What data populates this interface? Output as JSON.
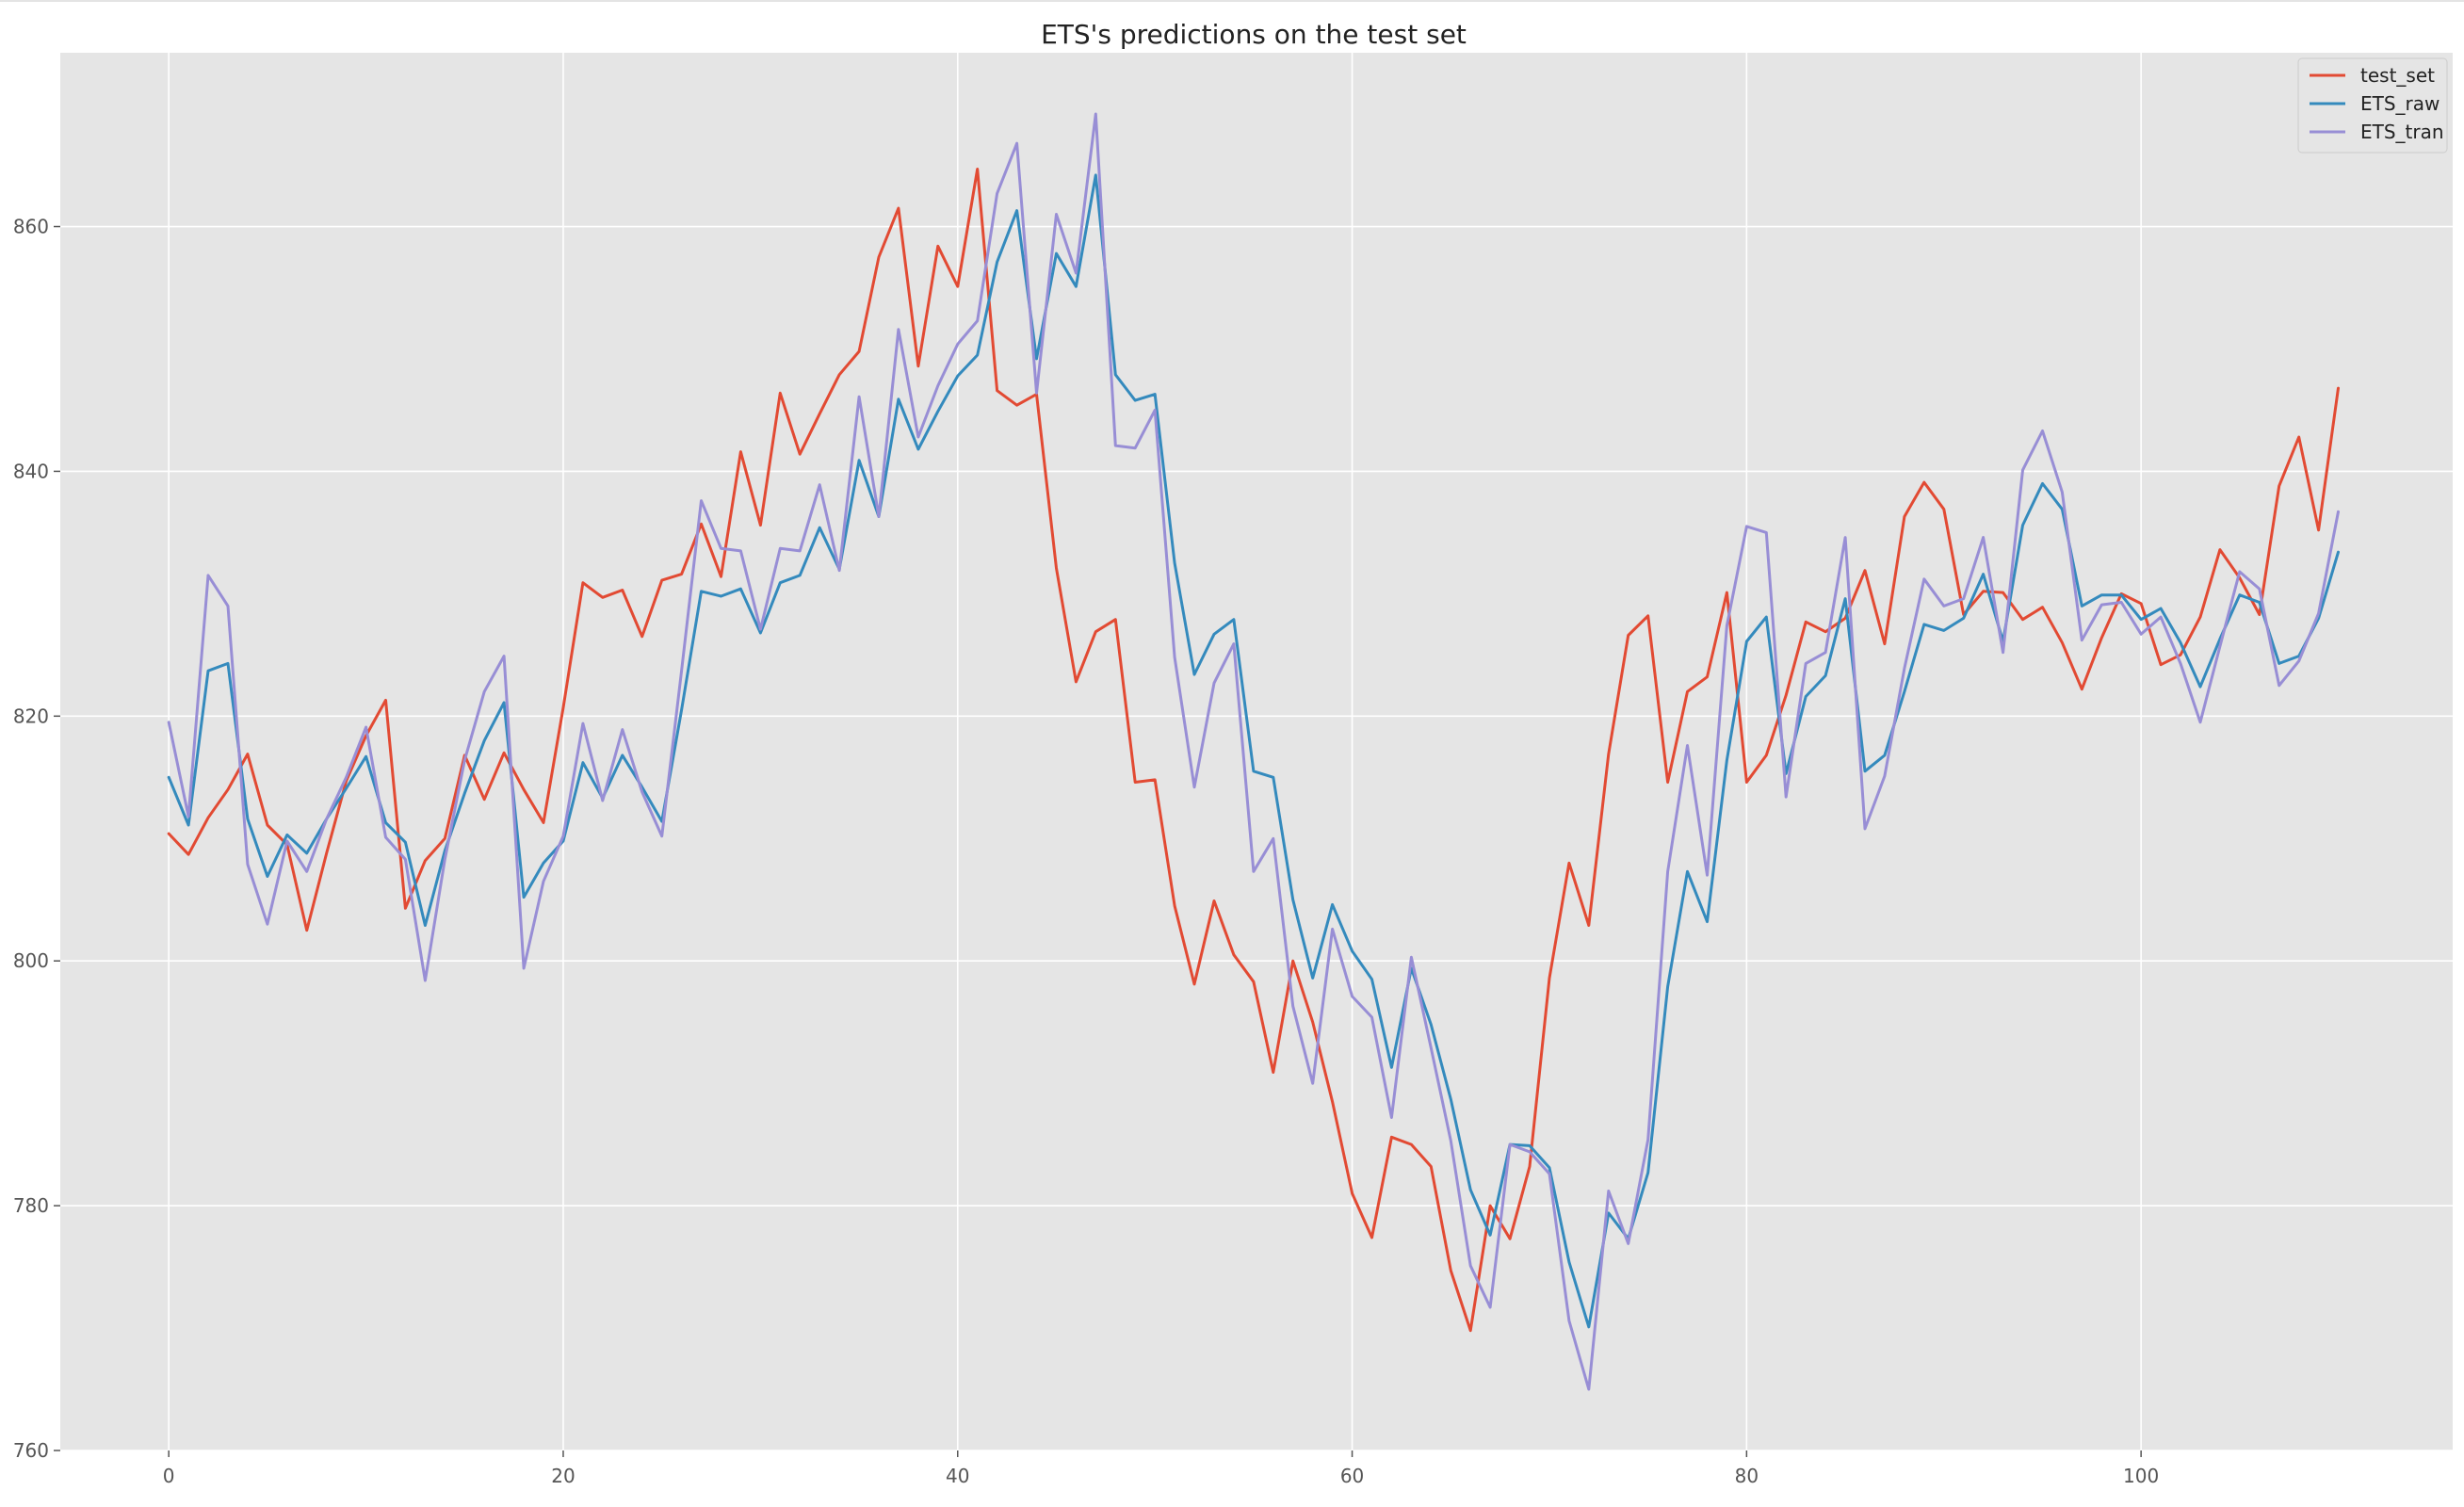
{
  "chart_data": {
    "type": "line",
    "title": "ETS's predictions on the test set",
    "xlabel": "",
    "ylabel": "",
    "xlim": [
      -5.5,
      115.8
    ],
    "ylim": [
      760,
      874.2
    ],
    "grid": true,
    "legend_position": "top-right",
    "x_ticks": [
      0,
      20,
      40,
      60,
      80,
      100
    ],
    "y_ticks": [
      760,
      780,
      800,
      820,
      840,
      860
    ],
    "background": "#e5e5e5",
    "series": [
      {
        "name": "test_set",
        "color": "#e24a33",
        "values": [
          810.4,
          808.7,
          811.7,
          814.0,
          816.9,
          811.1,
          809.5,
          802.5,
          808.8,
          814.7,
          818.4,
          821.3,
          804.3,
          808.2,
          810.0,
          816.8,
          813.2,
          817.0,
          814.0,
          811.3,
          820.7,
          830.9,
          829.7,
          830.3,
          826.5,
          831.1,
          831.6,
          835.7,
          831.4,
          841.6,
          835.6,
          846.4,
          841.4,
          844.7,
          847.9,
          849.8,
          857.5,
          861.5,
          848.6,
          858.4,
          855.1,
          864.7,
          846.6,
          845.4,
          846.3,
          832.1,
          822.8,
          826.9,
          827.9,
          814.6,
          814.8,
          804.5,
          798.1,
          804.9,
          800.5,
          798.3,
          790.9,
          800.0,
          795.0,
          788.5,
          781.0,
          777.4,
          785.6,
          785.0,
          783.2,
          774.7,
          769.8,
          780.0,
          777.3,
          783.2,
          798.6,
          808.0,
          802.9,
          816.9,
          826.6,
          828.2,
          814.6,
          822.0,
          823.2,
          830.1,
          814.6,
          816.8,
          821.7,
          827.7,
          826.9,
          828.0,
          831.9,
          825.9,
          836.3,
          839.1,
          836.9,
          828.3,
          830.2,
          830.1,
          827.9,
          828.9,
          826.0,
          822.2,
          826.4,
          830.0,
          829.2,
          824.2,
          825.0,
          828.1,
          833.6,
          831.3,
          828.3,
          838.8,
          842.8,
          835.2,
          846.8
        ]
      },
      {
        "name": "ETS_raw",
        "color": "#348abd",
        "values": [
          815.0,
          811.1,
          823.7,
          824.3,
          811.6,
          806.9,
          810.3,
          808.8,
          811.6,
          814.1,
          816.7,
          811.3,
          809.7,
          802.9,
          809.0,
          813.7,
          818.0,
          821.1,
          805.2,
          808.0,
          809.8,
          816.2,
          813.3,
          816.8,
          814.2,
          811.4,
          820.5,
          830.2,
          829.8,
          830.4,
          826.8,
          830.9,
          831.5,
          835.4,
          832.0,
          840.9,
          836.3,
          845.9,
          841.8,
          844.9,
          847.8,
          849.5,
          857.1,
          861.3,
          849.2,
          857.8,
          855.1,
          864.2,
          847.9,
          845.8,
          846.3,
          832.5,
          823.4,
          826.7,
          827.9,
          815.5,
          815.0,
          805.0,
          798.6,
          804.6,
          800.8,
          798.5,
          791.3,
          799.4,
          794.8,
          788.7,
          781.3,
          777.6,
          785.0,
          784.9,
          783.1,
          775.4,
          770.1,
          779.4,
          777.3,
          782.7,
          797.9,
          807.3,
          803.2,
          816.4,
          826.1,
          828.1,
          815.3,
          821.6,
          823.3,
          829.6,
          815.5,
          816.8,
          822.0,
          827.5,
          827.0,
          828.0,
          831.6,
          826.1,
          835.6,
          839.0,
          836.9,
          829.0,
          829.9,
          829.9,
          827.9,
          828.8,
          826.0,
          822.4,
          826.3,
          829.9,
          829.3,
          824.3,
          824.9,
          828.0,
          833.4
        ]
      },
      {
        "name": "ETS_tran",
        "color": "#988ed5",
        "values": [
          819.5,
          811.8,
          831.5,
          829.0,
          807.9,
          803.0,
          809.8,
          807.3,
          811.6,
          815.0,
          819.1,
          810.1,
          808.3,
          798.4,
          808.3,
          816.4,
          822.0,
          824.9,
          799.4,
          806.5,
          810.2,
          819.4,
          813.1,
          818.9,
          813.8,
          810.2,
          823.7,
          837.6,
          833.7,
          833.5,
          827.1,
          833.7,
          833.5,
          838.9,
          831.9,
          846.1,
          836.3,
          851.6,
          842.8,
          847.0,
          850.4,
          852.3,
          862.7,
          866.8,
          846.4,
          861.0,
          856.2,
          869.2,
          842.1,
          841.9,
          845.0,
          824.8,
          814.2,
          822.7,
          825.9,
          807.3,
          810.0,
          796.3,
          790.0,
          802.6,
          797.1,
          795.4,
          787.2,
          800.3,
          792.9,
          785.3,
          775.1,
          771.7,
          785.0,
          784.4,
          782.6,
          770.6,
          765.0,
          781.2,
          776.9,
          785.4,
          807.3,
          817.6,
          807.0,
          827.4,
          835.5,
          835.0,
          813.4,
          824.3,
          825.2,
          834.6,
          810.8,
          815.1,
          823.9,
          831.2,
          829.0,
          829.6,
          834.6,
          825.2,
          840.1,
          843.3,
          838.3,
          826.2,
          829.1,
          829.3,
          826.7,
          828.1,
          824.3,
          819.5,
          825.7,
          831.8,
          830.4,
          822.5,
          824.5,
          828.4,
          836.7
        ]
      }
    ]
  }
}
